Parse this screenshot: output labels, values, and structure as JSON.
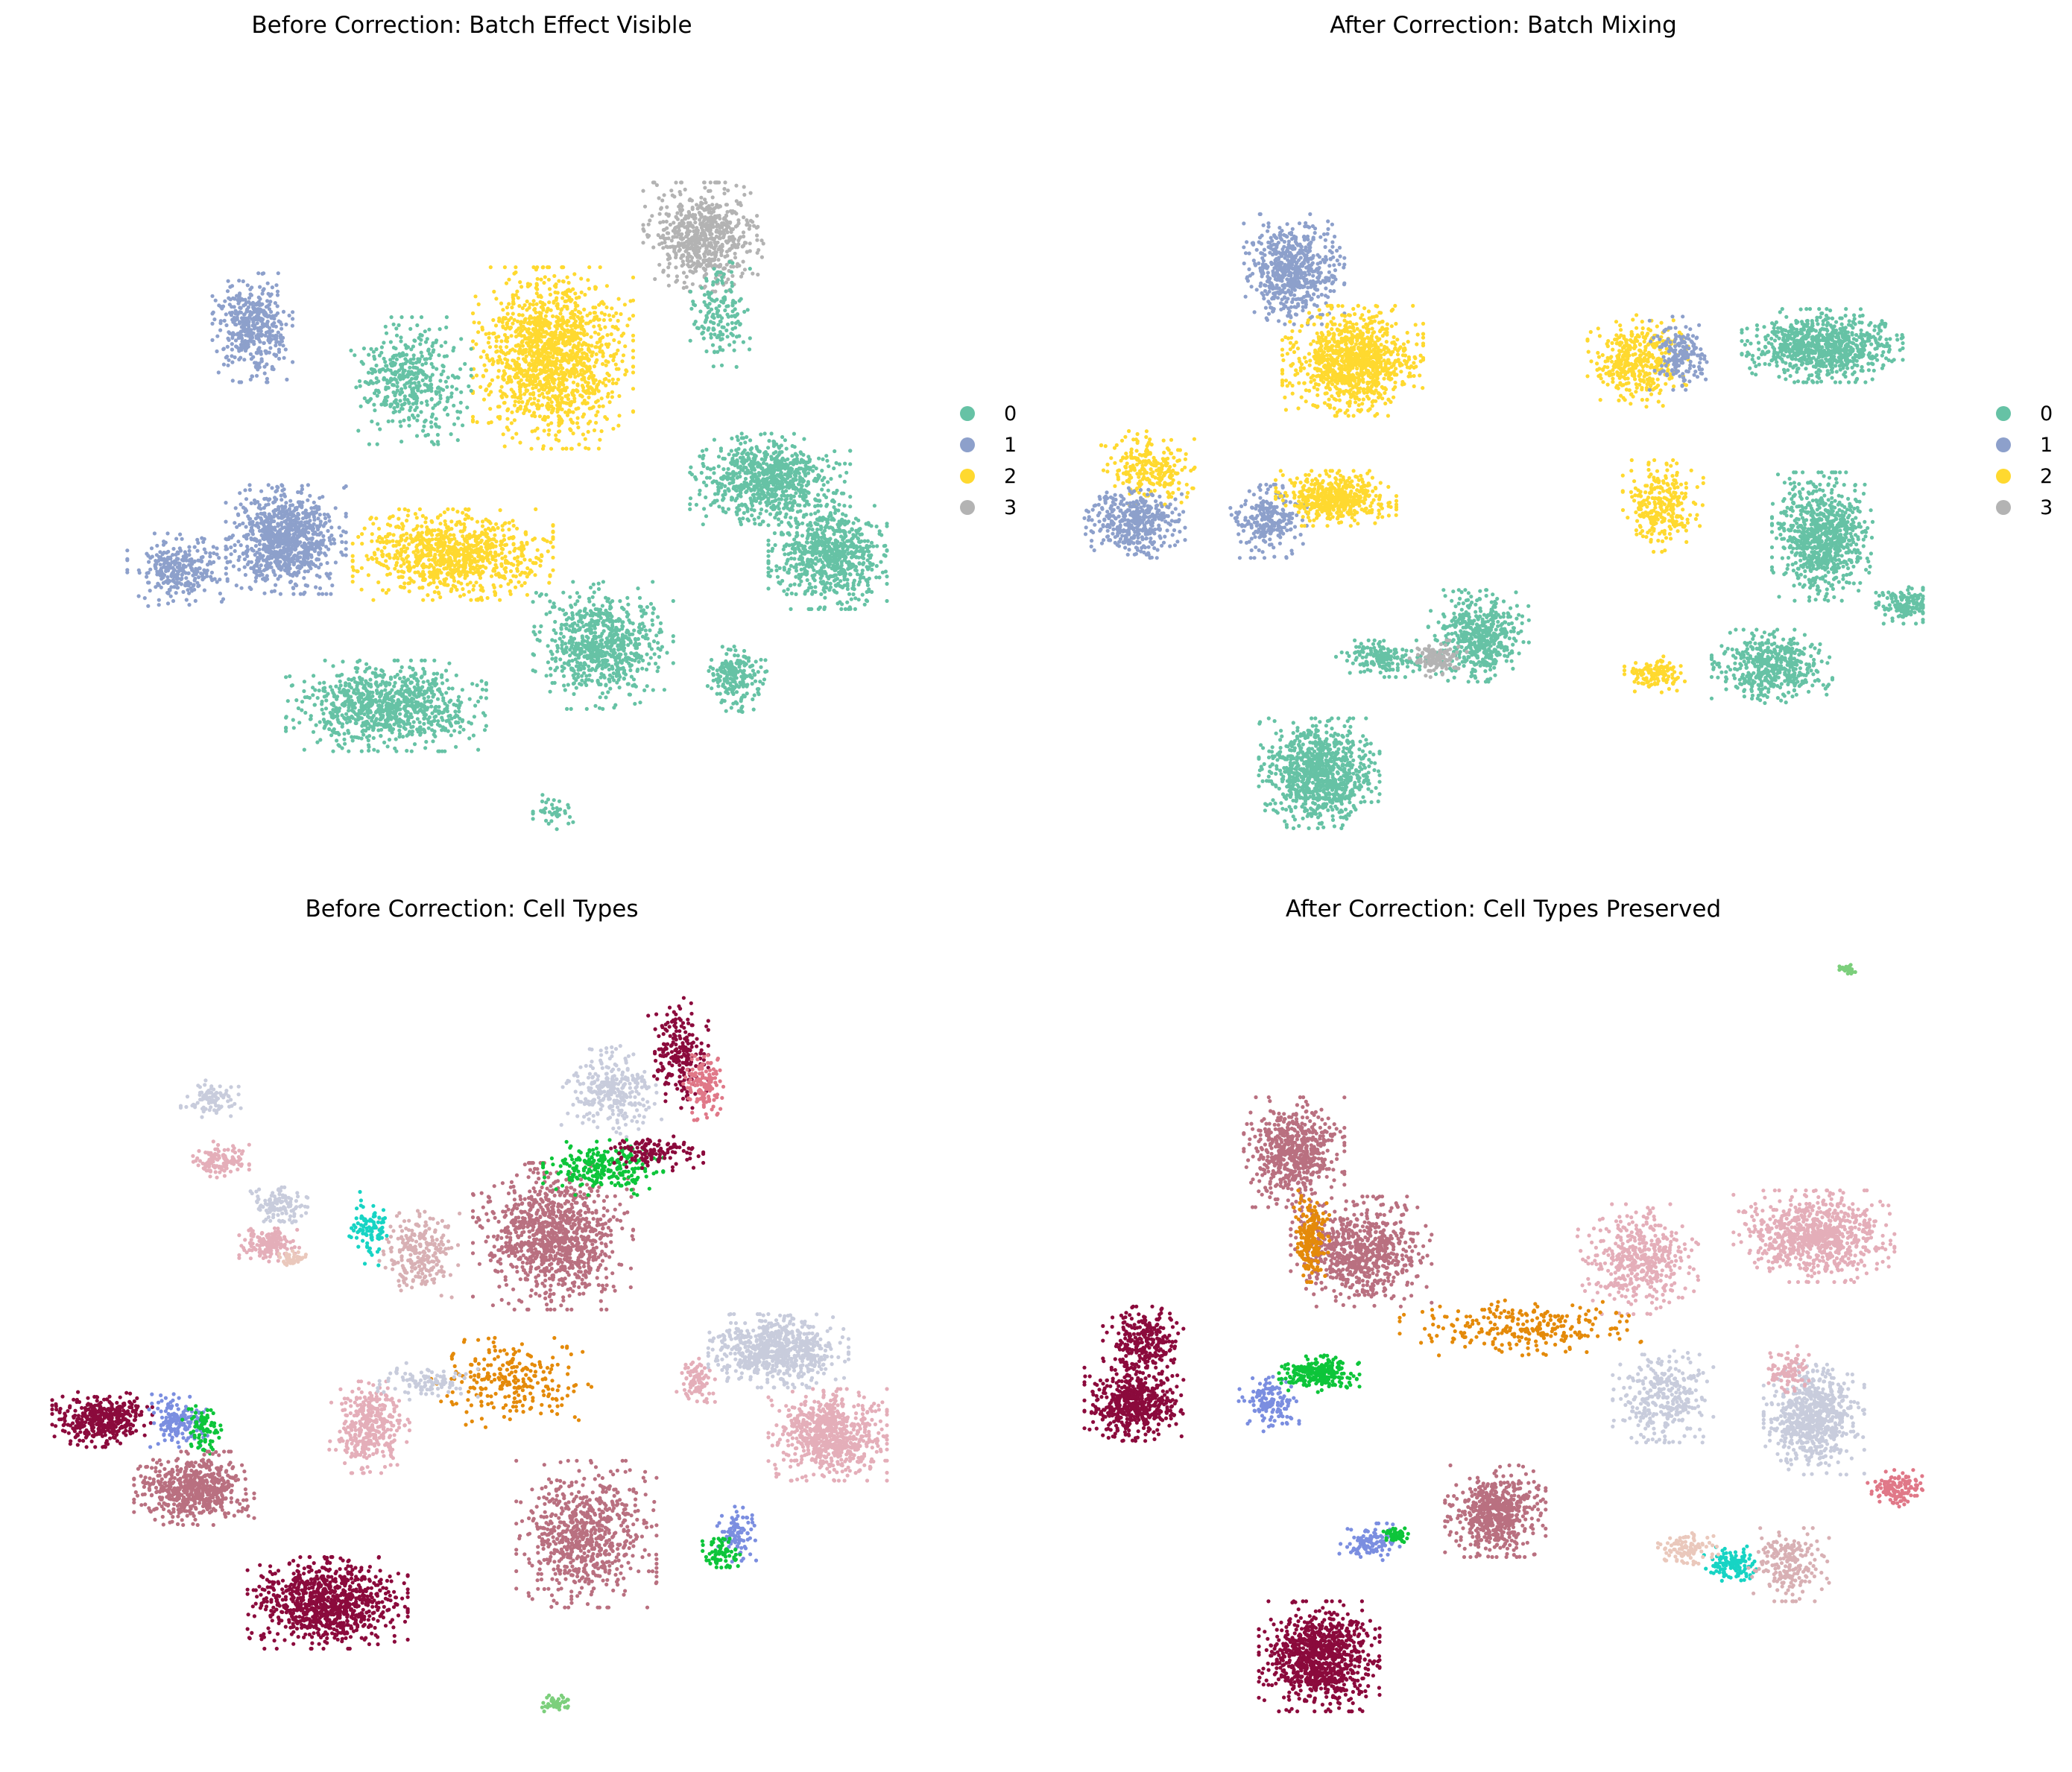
{
  "chart_data": [
    {
      "type": "scatter",
      "title": "Before Correction: Batch Effect Visible",
      "colorby": "batch",
      "legend": {
        "placement": "right",
        "entries": [
          "0",
          "1",
          "2",
          "3"
        ]
      },
      "palette": {
        "0": "#66c2a5",
        "1": "#8da0cb",
        "2": "#ffd92f",
        "3": "#b3b3b3"
      },
      "axes_visible": false,
      "clusters": [
        {
          "center": [
            0.78,
            0.2
          ],
          "spread": [
            0.06,
            0.06
          ],
          "count": 650,
          "batch": "3"
        },
        {
          "center": [
            0.6,
            0.36
          ],
          "spread": [
            0.08,
            0.1
          ],
          "count": 1400,
          "batch": "2"
        },
        {
          "center": [
            0.8,
            0.3
          ],
          "spread": [
            0.03,
            0.06
          ],
          "count": 160,
          "batch": "0"
        },
        {
          "center": [
            0.24,
            0.32
          ],
          "spread": [
            0.04,
            0.06
          ],
          "count": 420,
          "batch": "1"
        },
        {
          "center": [
            0.43,
            0.39
          ],
          "spread": [
            0.06,
            0.07
          ],
          "count": 420,
          "batch": "0"
        },
        {
          "center": [
            0.86,
            0.52
          ],
          "spread": [
            0.08,
            0.05
          ],
          "count": 800,
          "batch": "0"
        },
        {
          "center": [
            0.93,
            0.62
          ],
          "spread": [
            0.06,
            0.06
          ],
          "count": 700,
          "batch": "0"
        },
        {
          "center": [
            0.28,
            0.6
          ],
          "spread": [
            0.06,
            0.06
          ],
          "count": 900,
          "batch": "1"
        },
        {
          "center": [
            0.15,
            0.64
          ],
          "spread": [
            0.05,
            0.04
          ],
          "count": 300,
          "batch": "1"
        },
        {
          "center": [
            0.48,
            0.62
          ],
          "spread": [
            0.1,
            0.05
          ],
          "count": 900,
          "batch": "2"
        },
        {
          "center": [
            0.4,
            0.82
          ],
          "spread": [
            0.1,
            0.05
          ],
          "count": 900,
          "batch": "0"
        },
        {
          "center": [
            0.66,
            0.74
          ],
          "spread": [
            0.07,
            0.07
          ],
          "count": 700,
          "batch": "0"
        },
        {
          "center": [
            0.82,
            0.78
          ],
          "spread": [
            0.03,
            0.04
          ],
          "count": 200,
          "batch": "0"
        },
        {
          "center": [
            0.6,
            0.96
          ],
          "spread": [
            0.02,
            0.02
          ],
          "count": 40,
          "batch": "0"
        }
      ]
    },
    {
      "type": "scatter",
      "title": "After Correction: Batch Mixing",
      "colorby": "batch",
      "legend": {
        "placement": "right",
        "entries": [
          "0",
          "1",
          "2",
          "3"
        ]
      },
      "palette": {
        "0": "#66c2a5",
        "1": "#8da0cb",
        "2": "#ffd92f",
        "3": "#b3b3b3"
      },
      "axes_visible": false,
      "clusters": [
        {
          "center": [
            0.25,
            0.25
          ],
          "spread": [
            0.05,
            0.06
          ],
          "count": 600,
          "batch": "1"
        },
        {
          "center": [
            0.32,
            0.37
          ],
          "spread": [
            0.07,
            0.06
          ],
          "count": 1000,
          "batch": "2"
        },
        {
          "center": [
            0.66,
            0.37
          ],
          "spread": [
            0.05,
            0.05
          ],
          "count": 400,
          "batch": "2"
        },
        {
          "center": [
            0.71,
            0.36
          ],
          "spread": [
            0.03,
            0.04
          ],
          "count": 180,
          "batch": "1"
        },
        {
          "center": [
            0.88,
            0.35
          ],
          "spread": [
            0.08,
            0.04
          ],
          "count": 800,
          "batch": "0"
        },
        {
          "center": [
            0.08,
            0.51
          ],
          "spread": [
            0.05,
            0.04
          ],
          "count": 250,
          "batch": "2"
        },
        {
          "center": [
            0.06,
            0.58
          ],
          "spread": [
            0.05,
            0.04
          ],
          "count": 400,
          "batch": "1"
        },
        {
          "center": [
            0.22,
            0.58
          ],
          "spread": [
            0.04,
            0.04
          ],
          "count": 250,
          "batch": "1"
        },
        {
          "center": [
            0.3,
            0.55
          ],
          "spread": [
            0.06,
            0.03
          ],
          "count": 500,
          "batch": "2"
        },
        {
          "center": [
            0.69,
            0.56
          ],
          "spread": [
            0.04,
            0.05
          ],
          "count": 280,
          "batch": "2"
        },
        {
          "center": [
            0.88,
            0.6
          ],
          "spread": [
            0.05,
            0.07
          ],
          "count": 800,
          "batch": "0"
        },
        {
          "center": [
            0.98,
            0.69
          ],
          "spread": [
            0.03,
            0.02
          ],
          "count": 150,
          "batch": "0"
        },
        {
          "center": [
            0.47,
            0.73
          ],
          "spread": [
            0.05,
            0.05
          ],
          "count": 500,
          "batch": "0"
        },
        {
          "center": [
            0.36,
            0.76
          ],
          "spread": [
            0.05,
            0.02
          ],
          "count": 160,
          "batch": "0"
        },
        {
          "center": [
            0.42,
            0.76
          ],
          "spread": [
            0.03,
            0.02
          ],
          "count": 120,
          "batch": "3"
        },
        {
          "center": [
            0.82,
            0.77
          ],
          "spread": [
            0.06,
            0.04
          ],
          "count": 450,
          "batch": "0"
        },
        {
          "center": [
            0.68,
            0.78
          ],
          "spread": [
            0.03,
            0.02
          ],
          "count": 120,
          "batch": "2"
        },
        {
          "center": [
            0.28,
            0.91
          ],
          "spread": [
            0.06,
            0.06
          ],
          "count": 900,
          "batch": "0"
        }
      ]
    },
    {
      "type": "scatter",
      "title": "Before Correction: Cell Types",
      "colorby": "cell type",
      "axes_visible": false,
      "palette": [
        "#8b0a3c",
        "#b97080",
        "#e4aeb9",
        "#c8ccdc",
        "#e48a0a",
        "#0dc53a",
        "#7b8ee0",
        "#17d4c4",
        "#d8b0b4",
        "#e07888",
        "#2448d8",
        "#7ccf7c",
        "#eac8bc"
      ],
      "clusters": [
        {
          "center": [
            0.75,
            0.12
          ],
          "spread": [
            0.03,
            0.06
          ],
          "count": 220,
          "type": 0
        },
        {
          "center": [
            0.67,
            0.17
          ],
          "spread": [
            0.05,
            0.05
          ],
          "count": 300,
          "type": 3
        },
        {
          "center": [
            0.6,
            0.36
          ],
          "spread": [
            0.08,
            0.08
          ],
          "count": 1000,
          "type": 1
        },
        {
          "center": [
            0.66,
            0.27
          ],
          "spread": [
            0.06,
            0.03
          ],
          "count": 250,
          "type": 5
        },
        {
          "center": [
            0.72,
            0.25
          ],
          "spread": [
            0.05,
            0.02
          ],
          "count": 120,
          "type": 0
        },
        {
          "center": [
            0.44,
            0.38
          ],
          "spread": [
            0.04,
            0.05
          ],
          "count": 250,
          "type": 8
        },
        {
          "center": [
            0.38,
            0.35
          ],
          "spread": [
            0.02,
            0.04
          ],
          "count": 90,
          "type": 7
        },
        {
          "center": [
            0.27,
            0.32
          ],
          "spread": [
            0.03,
            0.02
          ],
          "count": 120,
          "type": 3
        },
        {
          "center": [
            0.26,
            0.37
          ],
          "spread": [
            0.03,
            0.02
          ],
          "count": 160,
          "type": 2
        },
        {
          "center": [
            0.87,
            0.51
          ],
          "spread": [
            0.07,
            0.04
          ],
          "count": 700,
          "type": 3
        },
        {
          "center": [
            0.93,
            0.62
          ],
          "spread": [
            0.06,
            0.05
          ],
          "count": 700,
          "type": 2
        },
        {
          "center": [
            0.77,
            0.55
          ],
          "spread": [
            0.02,
            0.03
          ],
          "count": 90,
          "type": 2
        },
        {
          "center": [
            0.06,
            0.6
          ],
          "spread": [
            0.05,
            0.03
          ],
          "count": 400,
          "type": 0
        },
        {
          "center": [
            0.15,
            0.6
          ],
          "spread": [
            0.03,
            0.03
          ],
          "count": 160,
          "type": 6
        },
        {
          "center": [
            0.18,
            0.61
          ],
          "spread": [
            0.02,
            0.03
          ],
          "count": 80,
          "type": 5
        },
        {
          "center": [
            0.17,
            0.69
          ],
          "spread": [
            0.06,
            0.04
          ],
          "count": 600,
          "type": 1
        },
        {
          "center": [
            0.38,
            0.61
          ],
          "spread": [
            0.04,
            0.05
          ],
          "count": 350,
          "type": 2
        },
        {
          "center": [
            0.55,
            0.55
          ],
          "spread": [
            0.08,
            0.05
          ],
          "count": 250,
          "type": 4
        },
        {
          "center": [
            0.45,
            0.55
          ],
          "spread": [
            0.05,
            0.02
          ],
          "count": 100,
          "type": 3
        },
        {
          "center": [
            0.33,
            0.84
          ],
          "spread": [
            0.08,
            0.05
          ],
          "count": 900,
          "type": 0
        },
        {
          "center": [
            0.64,
            0.75
          ],
          "spread": [
            0.07,
            0.08
          ],
          "count": 700,
          "type": 1
        },
        {
          "center": [
            0.82,
            0.75
          ],
          "spread": [
            0.02,
            0.03
          ],
          "count": 90,
          "type": 6
        },
        {
          "center": [
            0.8,
            0.78
          ],
          "spread": [
            0.02,
            0.02
          ],
          "count": 70,
          "type": 5
        },
        {
          "center": [
            0.78,
            0.16
          ],
          "spread": [
            0.02,
            0.04
          ],
          "count": 140,
          "type": 9
        },
        {
          "center": [
            0.19,
            0.18
          ],
          "spread": [
            0.03,
            0.02
          ],
          "count": 90,
          "type": 3
        },
        {
          "center": [
            0.2,
            0.26
          ],
          "spread": [
            0.03,
            0.02
          ],
          "count": 120,
          "type": 2
        },
        {
          "center": [
            0.29,
            0.39
          ],
          "spread": [
            0.015,
            0.01
          ],
          "count": 40,
          "type": 12
        },
        {
          "center": [
            0.6,
            0.97
          ],
          "spread": [
            0.015,
            0.01
          ],
          "count": 40,
          "type": 11
        }
      ]
    },
    {
      "type": "scatter",
      "title": "After Correction: Cell Types Preserved",
      "colorby": "cell type",
      "axes_visible": false,
      "palette": [
        "#8b0a3c",
        "#b97080",
        "#e4aeb9",
        "#c8ccdc",
        "#e48a0a",
        "#0dc53a",
        "#7b8ee0",
        "#17d4c4",
        "#d8b0b4",
        "#e07888",
        "#2448d8",
        "#7ccf7c",
        "#eac8bc"
      ],
      "clusters": [
        {
          "center": [
            0.25,
            0.25
          ],
          "spread": [
            0.05,
            0.06
          ],
          "count": 600,
          "type": 1
        },
        {
          "center": [
            0.33,
            0.38
          ],
          "spread": [
            0.07,
            0.06
          ],
          "count": 700,
          "type": 1
        },
        {
          "center": [
            0.27,
            0.36
          ],
          "spread": [
            0.02,
            0.05
          ],
          "count": 200,
          "type": 4
        },
        {
          "center": [
            0.66,
            0.39
          ],
          "spread": [
            0.06,
            0.06
          ],
          "count": 450,
          "type": 2
        },
        {
          "center": [
            0.87,
            0.36
          ],
          "spread": [
            0.08,
            0.05
          ],
          "count": 800,
          "type": 2
        },
        {
          "center": [
            0.07,
            0.5
          ],
          "spread": [
            0.04,
            0.04
          ],
          "count": 250,
          "type": 0
        },
        {
          "center": [
            0.06,
            0.58
          ],
          "spread": [
            0.05,
            0.04
          ],
          "count": 500,
          "type": 0
        },
        {
          "center": [
            0.22,
            0.58
          ],
          "spread": [
            0.03,
            0.03
          ],
          "count": 130,
          "type": 6
        },
        {
          "center": [
            0.28,
            0.54
          ],
          "spread": [
            0.04,
            0.02
          ],
          "count": 250,
          "type": 5
        },
        {
          "center": [
            0.52,
            0.48
          ],
          "spread": [
            0.12,
            0.03
          ],
          "count": 260,
          "type": 4
        },
        {
          "center": [
            0.69,
            0.57
          ],
          "spread": [
            0.05,
            0.05
          ],
          "count": 320,
          "type": 3
        },
        {
          "center": [
            0.87,
            0.6
          ],
          "spread": [
            0.05,
            0.06
          ],
          "count": 700,
          "type": 3
        },
        {
          "center": [
            0.84,
            0.54
          ],
          "spread": [
            0.02,
            0.03
          ],
          "count": 90,
          "type": 2
        },
        {
          "center": [
            0.97,
            0.69
          ],
          "spread": [
            0.03,
            0.02
          ],
          "count": 140,
          "type": 9
        },
        {
          "center": [
            0.49,
            0.72
          ],
          "spread": [
            0.05,
            0.05
          ],
          "count": 600,
          "type": 1
        },
        {
          "center": [
            0.34,
            0.76
          ],
          "spread": [
            0.03,
            0.02
          ],
          "count": 100,
          "type": 6
        },
        {
          "center": [
            0.37,
            0.75
          ],
          "spread": [
            0.015,
            0.01
          ],
          "count": 50,
          "type": 5
        },
        {
          "center": [
            0.77,
            0.79
          ],
          "spread": [
            0.03,
            0.02
          ],
          "count": 120,
          "type": 7
        },
        {
          "center": [
            0.84,
            0.79
          ],
          "spread": [
            0.04,
            0.04
          ],
          "count": 200,
          "type": 8
        },
        {
          "center": [
            0.72,
            0.77
          ],
          "spread": [
            0.03,
            0.02
          ],
          "count": 100,
          "type": 12
        },
        {
          "center": [
            0.28,
            0.91
          ],
          "spread": [
            0.06,
            0.06
          ],
          "count": 900,
          "type": 0
        },
        {
          "center": [
            0.91,
            0.01
          ],
          "spread": [
            0.008,
            0.006
          ],
          "count": 30,
          "type": 11
        }
      ]
    }
  ]
}
